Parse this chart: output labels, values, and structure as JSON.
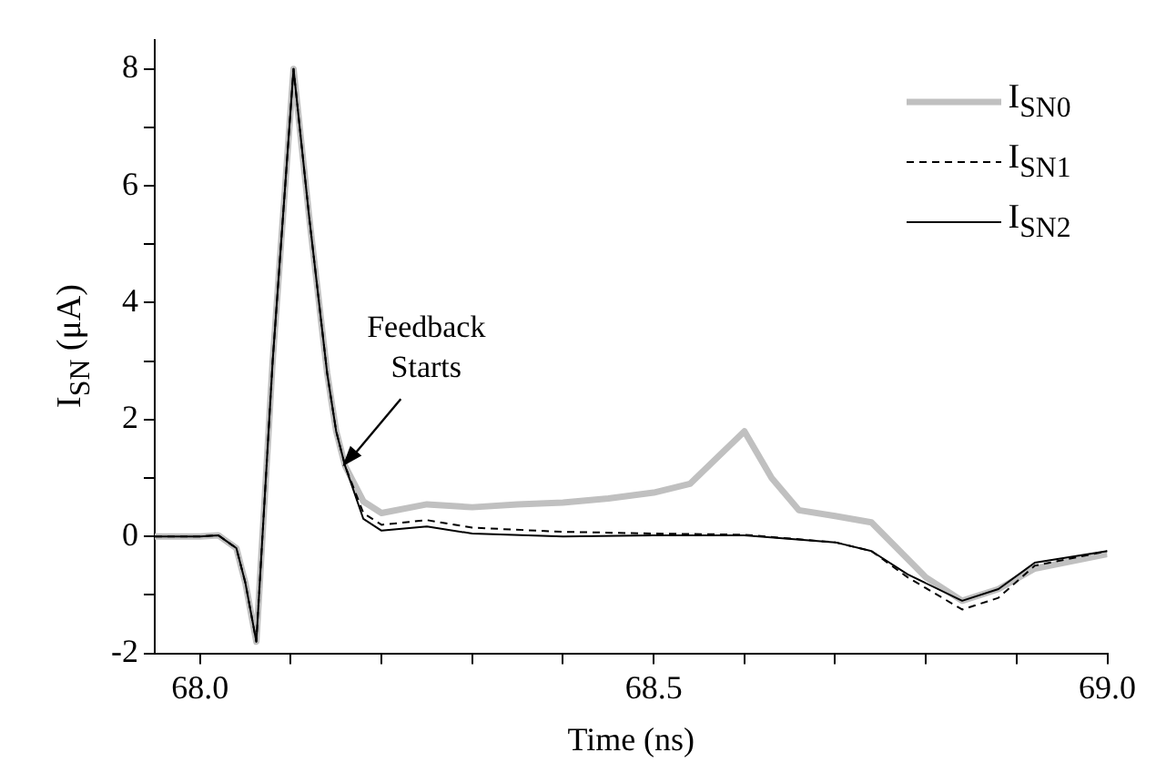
{
  "chart_data": {
    "type": "line",
    "xlabel": "Time (ns)",
    "ylabel": "I$_{SN}$ (μA)",
    "xlim": [
      67.95,
      69.0
    ],
    "xticks": [
      {
        "value": 68.0,
        "label": "68.0"
      },
      {
        "value": 68.1,
        "label": null
      },
      {
        "value": 68.2,
        "label": null
      },
      {
        "value": 68.3,
        "label": null
      },
      {
        "value": 68.4,
        "label": null
      },
      {
        "value": 68.5,
        "label": "68.5"
      },
      {
        "value": 68.6,
        "label": null
      },
      {
        "value": 68.7,
        "label": null
      },
      {
        "value": 68.8,
        "label": null
      },
      {
        "value": 68.9,
        "label": null
      },
      {
        "value": 69.0,
        "label": "69.0"
      }
    ],
    "ylim": [
      -2,
      8.5
    ],
    "yticks": [
      -2,
      {
        "value": -1,
        "label": null
      },
      0,
      {
        "value": 1,
        "label": null
      },
      2,
      {
        "value": 3,
        "label": null
      },
      4,
      {
        "value": 5,
        "label": null
      },
      6,
      {
        "value": 7,
        "label": null
      },
      8
    ],
    "grid": false,
    "legend": "top right",
    "marker": "none",
    "annotations": [
      {
        "text": "Feedback Starts",
        "x": 68.157,
        "y": 1.2
      }
    ],
    "series": [
      {
        "name": "I$_{SN0}$",
        "color": "#c0c0c0",
        "line_style": "solid",
        "x": [
          67.95,
          68.0,
          68.02,
          68.04,
          68.05,
          68.062,
          68.08,
          68.103,
          68.12,
          68.14,
          68.15,
          68.16,
          68.18,
          68.2,
          68.25,
          68.3,
          68.35,
          68.4,
          68.45,
          68.5,
          68.54,
          68.6,
          68.63,
          68.66,
          68.7,
          68.74,
          68.8,
          68.84,
          68.88,
          68.92,
          69.0
        ],
        "values": [
          0,
          0,
          0.02,
          -0.2,
          -0.8,
          -1.8,
          3,
          8.0,
          5.5,
          2.8,
          1.8,
          1.2,
          0.6,
          0.4,
          0.55,
          0.5,
          0.55,
          0.58,
          0.65,
          0.75,
          0.9,
          1.8,
          1.0,
          0.45,
          0.35,
          0.24,
          -0.7,
          -1.1,
          -0.9,
          -0.55,
          -0.3
        ]
      },
      {
        "name": "I$_{SN1}$",
        "color": "#000000",
        "line_style": "dashed",
        "x": [
          67.95,
          68.0,
          68.02,
          68.04,
          68.05,
          68.062,
          68.08,
          68.103,
          68.12,
          68.14,
          68.15,
          68.16,
          68.18,
          68.2,
          68.25,
          68.3,
          68.4,
          68.5,
          68.6,
          68.7,
          68.74,
          68.78,
          68.84,
          68.88,
          68.92,
          69.0
        ],
        "values": [
          0,
          0,
          0.02,
          -0.2,
          -0.8,
          -1.8,
          3,
          8.0,
          5.5,
          2.8,
          1.8,
          1.2,
          0.4,
          0.2,
          0.28,
          0.15,
          0.08,
          0.05,
          0.03,
          -0.1,
          -0.25,
          -0.7,
          -1.25,
          -1.05,
          -0.5,
          -0.25
        ]
      },
      {
        "name": "I$_{SN2}$",
        "color": "#000000",
        "line_style": "solid",
        "x": [
          67.95,
          68.0,
          68.02,
          68.04,
          68.05,
          68.062,
          68.08,
          68.103,
          68.12,
          68.14,
          68.15,
          68.16,
          68.18,
          68.2,
          68.25,
          68.3,
          68.4,
          68.5,
          68.6,
          68.7,
          68.74,
          68.78,
          68.84,
          68.88,
          68.92,
          69.0
        ],
        "values": [
          0,
          0,
          0.02,
          -0.2,
          -0.8,
          -1.8,
          3,
          8.0,
          5.5,
          2.8,
          1.8,
          1.2,
          0.3,
          0.1,
          0.17,
          0.05,
          0.0,
          0.02,
          0.02,
          -0.1,
          -0.25,
          -0.65,
          -1.1,
          -0.9,
          -0.45,
          -0.25
        ]
      }
    ]
  }
}
